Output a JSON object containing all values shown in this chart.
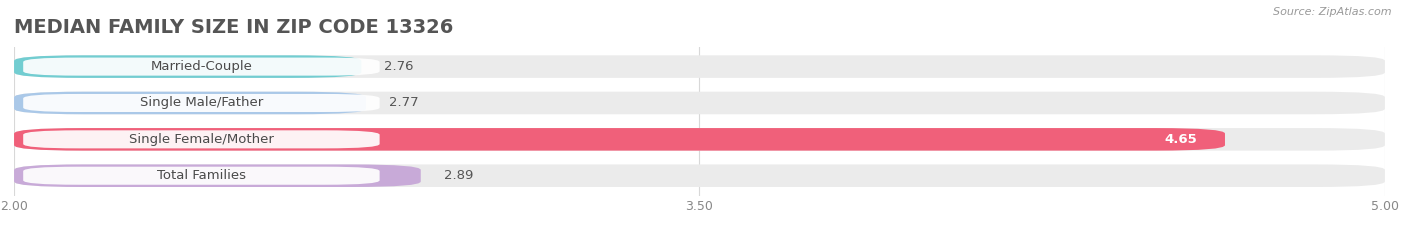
{
  "title": "MEDIAN FAMILY SIZE IN ZIP CODE 13326",
  "source": "Source: ZipAtlas.com",
  "categories": [
    "Married-Couple",
    "Single Male/Father",
    "Single Female/Mother",
    "Total Families"
  ],
  "values": [
    2.76,
    2.77,
    4.65,
    2.89
  ],
  "bar_colors": [
    "#72cdd1",
    "#aac8e8",
    "#f0607a",
    "#c8aad8"
  ],
  "bg_bar_color": "#ebebeb",
  "xlim_min": 2.0,
  "xlim_max": 5.0,
  "xticks": [
    2.0,
    3.5,
    5.0
  ],
  "bar_height": 0.62,
  "figure_bg": "#ffffff",
  "axes_bg": "#ffffff",
  "label_fontsize": 9.5,
  "title_fontsize": 14,
  "grid_color": "#d8d8d8",
  "value_label_fontsize": 9.5,
  "pill_bg": "#ffffff",
  "pill_alpha": 0.92
}
